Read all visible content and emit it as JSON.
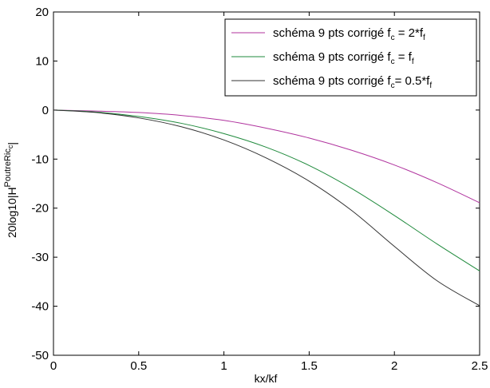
{
  "chart_data": {
    "type": "line",
    "xlabel": "kx/kf",
    "ylabel": {
      "text": "20log10|H",
      "superscript": "PoutreRic",
      "superscript_subscript": "c",
      "suffix": "|"
    },
    "xlim": [
      0,
      2.5
    ],
    "ylim": [
      -50,
      20
    ],
    "xticks": [
      "0",
      "0.5",
      "1",
      "1.5",
      "2",
      "2.5"
    ],
    "yticks": [
      "20",
      "10",
      "0",
      "-10",
      "-20",
      "-30",
      "-40",
      "-50"
    ],
    "grid": false,
    "legend_position": "top-right",
    "series": [
      {
        "name": "schéma 9 pts corrigé f_c = 2*f_f",
        "legend": {
          "main": "schéma 9 pts corrigé f",
          "sub1": "c",
          "mid": " = 2*f",
          "sub2": "f"
        },
        "color": "#b0339e",
        "x": [
          0,
          0.25,
          0.5,
          0.75,
          1.0,
          1.25,
          1.5,
          1.75,
          2.0,
          2.25,
          2.5
        ],
        "y": [
          0,
          -0.2,
          -0.5,
          -1.1,
          -2.1,
          -3.7,
          -5.7,
          -8.2,
          -11.2,
          -14.8,
          -18.9
        ]
      },
      {
        "name": "schéma 9 pts corrigé f_c = f_f",
        "legend": {
          "main": "schéma 9 pts corrigé f",
          "sub1": "c",
          "mid": " = f",
          "sub2": "f"
        },
        "color": "#1f8a3c",
        "x": [
          0,
          0.25,
          0.5,
          0.75,
          1.0,
          1.25,
          1.5,
          1.75,
          2.0,
          2.25,
          2.5
        ],
        "y": [
          0,
          -0.4,
          -1.3,
          -2.7,
          -4.8,
          -7.6,
          -11.3,
          -16.0,
          -21.5,
          -27.3,
          -32.8
        ]
      },
      {
        "name": "schéma 9 pts corrigé f_c = 0.5*f_f",
        "legend": {
          "main": "schéma 9 pts corrigé f",
          "sub1": "c",
          "mid": "= 0.5*f",
          "sub2": "f"
        },
        "color": "#333333",
        "x": [
          0,
          0.25,
          0.5,
          0.75,
          1.0,
          1.25,
          1.5,
          1.75,
          2.0,
          2.25,
          2.5
        ],
        "y": [
          0,
          -0.5,
          -1.6,
          -3.4,
          -6.1,
          -9.8,
          -14.5,
          -20.5,
          -27.8,
          -34.8,
          -39.9
        ]
      }
    ]
  }
}
